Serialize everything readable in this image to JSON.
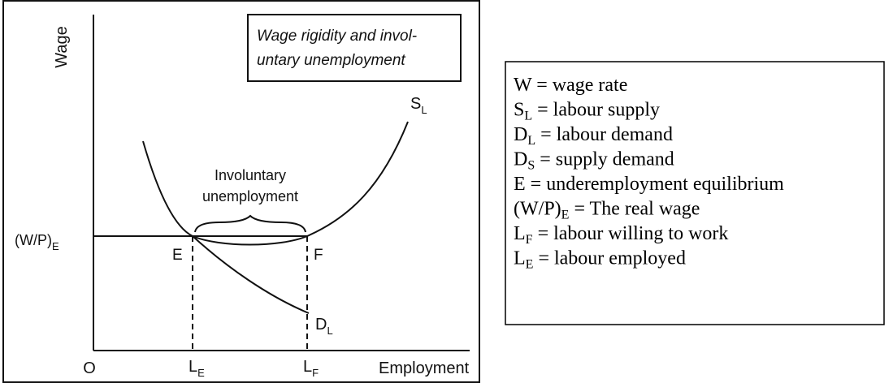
{
  "diagram": {
    "y_axis_label": "Wage",
    "x_axis_label": "Employment",
    "origin": "O",
    "title_box": [
      "Wage rigidity and invol-",
      "untary unemployment"
    ],
    "gap_label": [
      "Involuntary",
      "unemployment"
    ],
    "wage_level": {
      "symbol": "(W/P)",
      "sub": "E"
    },
    "point_e": "E",
    "point_f": "F",
    "supply": {
      "symbol": "S",
      "sub": "L"
    },
    "demand": {
      "symbol": "D",
      "sub": "L"
    },
    "le": {
      "symbol": "L",
      "sub": "E"
    },
    "lf": {
      "symbol": "L",
      "sub": "F"
    }
  },
  "legend": [
    {
      "symbol": "W",
      "sub": "",
      "text": " = wage rate"
    },
    {
      "symbol": "S",
      "sub": "L",
      "text": " = labour supply"
    },
    {
      "symbol": "D",
      "sub": "L",
      "text": " = labour demand"
    },
    {
      "symbol": "D",
      "sub": "S",
      "text": " = supply demand"
    },
    {
      "symbol": "E",
      "sub": "",
      "text": " = underemployment equilibrium"
    },
    {
      "symbol": "(W/P)",
      "sub": "E",
      "text": " = The real wage"
    },
    {
      "symbol": "L",
      "sub": "F",
      "text": " = labour willing to work"
    },
    {
      "symbol": "L",
      "sub": "E",
      "text": " = labour employed"
    }
  ]
}
